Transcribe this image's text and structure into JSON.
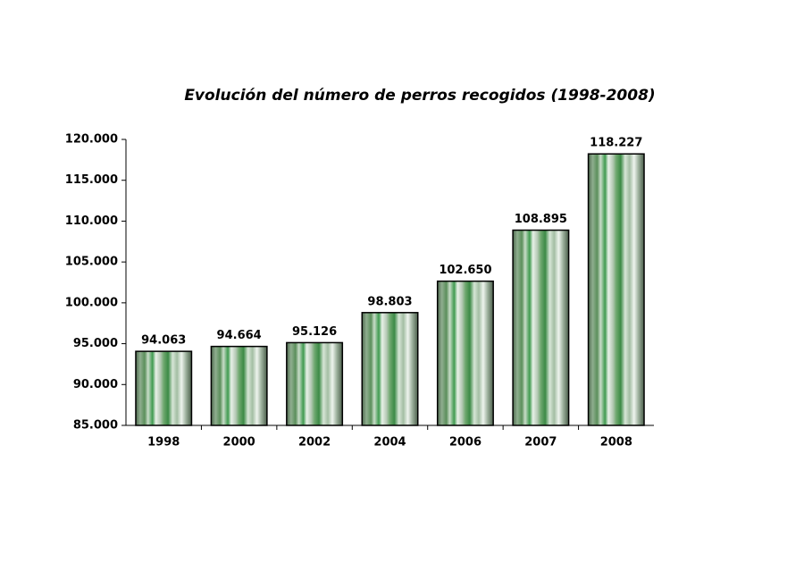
{
  "chart_data": {
    "type": "bar",
    "title": "Evolución del número de perros recogidos (1998-2008)",
    "categories": [
      "1998",
      "2000",
      "2002",
      "2004",
      "2006",
      "2007",
      "2008"
    ],
    "values": [
      94063,
      94664,
      95126,
      98803,
      102650,
      108895,
      118227
    ],
    "value_labels": [
      "94.063",
      "94.664",
      "95.126",
      "98.803",
      "102.650",
      "108.895",
      "118.227"
    ],
    "ylim": [
      85000,
      120000
    ],
    "yticks": [
      {
        "value": 85000,
        "label": "85.000"
      },
      {
        "value": 90000,
        "label": "90.000"
      },
      {
        "value": 95000,
        "label": "95.000"
      },
      {
        "value": 100000,
        "label": "100.000"
      },
      {
        "value": 105000,
        "label": "105.000"
      },
      {
        "value": 110000,
        "label": "110.000"
      },
      {
        "value": 115000,
        "label": "115.000"
      },
      {
        "value": 120000,
        "label": "120.000"
      }
    ],
    "grid": false
  }
}
